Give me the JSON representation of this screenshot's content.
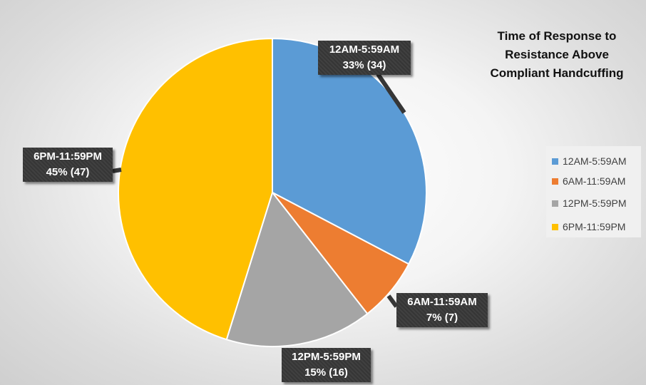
{
  "chart_data": {
    "type": "pie",
    "title": "Time of Response to Resistance Above Compliant Handcuffing",
    "title_lines": [
      "Time of Response to",
      "Resistance Above",
      "Compliant Handcuffing"
    ],
    "legend_position": "right",
    "slices": [
      {
        "label": "12AM-5:59AM",
        "value": 34,
        "percent": "33%",
        "data_label": "33% (34)",
        "color": "#5B9BD5"
      },
      {
        "label": "6AM-11:59AM",
        "value": 7,
        "percent": "7%",
        "data_label": "7% (7)",
        "color": "#ED7D31"
      },
      {
        "label": "12PM-5:59PM",
        "value": 16,
        "percent": "15%",
        "data_label": "15% (16)",
        "color": "#A5A5A5"
      },
      {
        "label": "6PM-11:59PM",
        "value": 47,
        "percent": "45%",
        "data_label": "45% (47)",
        "color": "#FFC000"
      }
    ]
  }
}
